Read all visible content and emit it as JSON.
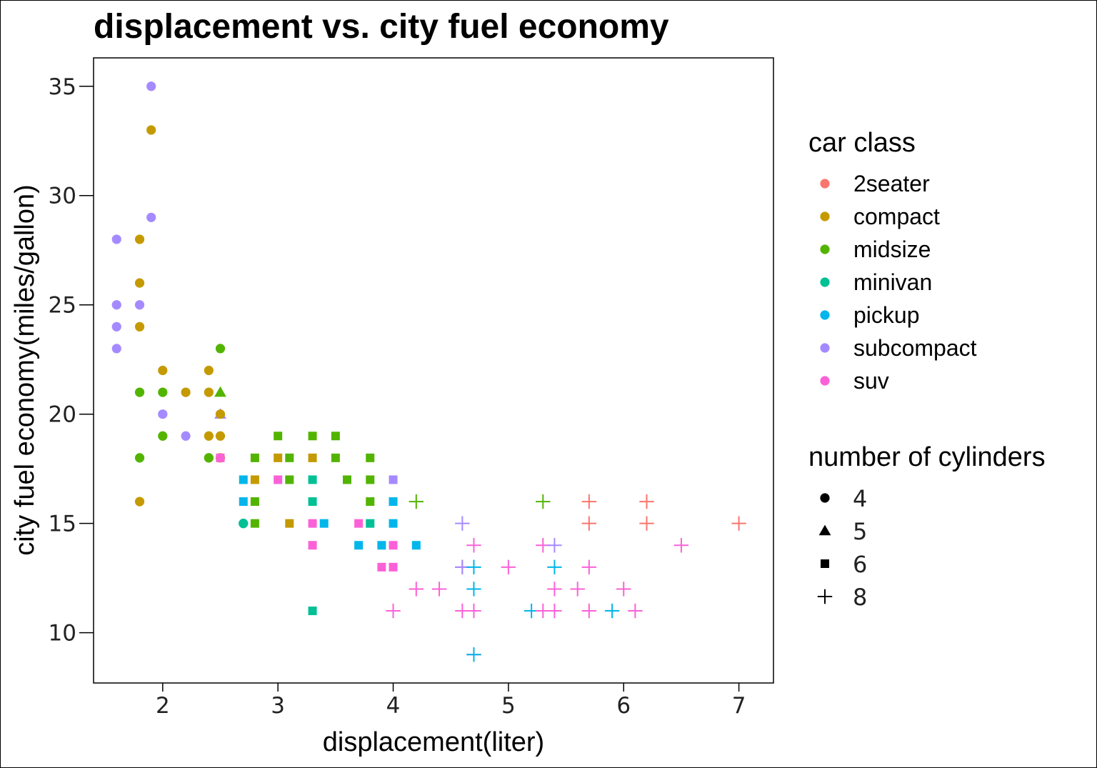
{
  "chart_data": {
    "type": "scatter",
    "title": "displacement vs. city fuel economy",
    "xlabel": "displacement(liter)",
    "ylabel": "city fuel economy(miles/gallon)",
    "xlim": [
      1.4,
      7.3
    ],
    "ylim": [
      7.7,
      36.3
    ],
    "x_ticks": [
      2,
      3,
      4,
      5,
      6,
      7
    ],
    "y_ticks": [
      10,
      15,
      20,
      25,
      30,
      35
    ],
    "grid": false,
    "legend_placement": "right",
    "color_legend": {
      "title": "car class",
      "entries": [
        {
          "label": "2seater",
          "color": "#F8766D"
        },
        {
          "label": "compact",
          "color": "#C49A00"
        },
        {
          "label": "midsize",
          "color": "#53B400"
        },
        {
          "label": "minivan",
          "color": "#00C094"
        },
        {
          "label": "pickup",
          "color": "#00B6EB"
        },
        {
          "label": "subcompact",
          "color": "#A58AFF"
        },
        {
          "label": "suv",
          "color": "#FB61D7"
        }
      ]
    },
    "shape_legend": {
      "title": "number of cylinders",
      "entries": [
        {
          "label": "4",
          "shape": "circle"
        },
        {
          "label": "5",
          "shape": "triangle"
        },
        {
          "label": "6",
          "shape": "square"
        },
        {
          "label": "8",
          "shape": "plus"
        }
      ]
    },
    "points": [
      {
        "x": 1.6,
        "y": 28,
        "class": "subcompact",
        "cyl": 4
      },
      {
        "x": 1.6,
        "y": 25,
        "class": "subcompact",
        "cyl": 4
      },
      {
        "x": 1.6,
        "y": 24,
        "class": "subcompact",
        "cyl": 4
      },
      {
        "x": 1.6,
        "y": 23,
        "class": "subcompact",
        "cyl": 4
      },
      {
        "x": 1.8,
        "y": 28,
        "class": "compact",
        "cyl": 4
      },
      {
        "x": 1.8,
        "y": 26,
        "class": "compact",
        "cyl": 4
      },
      {
        "x": 1.8,
        "y": 24,
        "class": "compact",
        "cyl": 4
      },
      {
        "x": 1.8,
        "y": 16,
        "class": "compact",
        "cyl": 4
      },
      {
        "x": 1.8,
        "y": 25,
        "class": "subcompact",
        "cyl": 4
      },
      {
        "x": 1.8,
        "y": 21,
        "class": "midsize",
        "cyl": 4
      },
      {
        "x": 1.8,
        "y": 18,
        "class": "midsize",
        "cyl": 4
      },
      {
        "x": 1.9,
        "y": 35,
        "class": "subcompact",
        "cyl": 4
      },
      {
        "x": 1.9,
        "y": 33,
        "class": "compact",
        "cyl": 4
      },
      {
        "x": 1.9,
        "y": 29,
        "class": "subcompact",
        "cyl": 4
      },
      {
        "x": 2.0,
        "y": 22,
        "class": "compact",
        "cyl": 4
      },
      {
        "x": 2.0,
        "y": 21,
        "class": "midsize",
        "cyl": 4
      },
      {
        "x": 2.0,
        "y": 20,
        "class": "subcompact",
        "cyl": 4
      },
      {
        "x": 2.0,
        "y": 19,
        "class": "midsize",
        "cyl": 4
      },
      {
        "x": 2.2,
        "y": 21,
        "class": "compact",
        "cyl": 4
      },
      {
        "x": 2.2,
        "y": 19,
        "class": "subcompact",
        "cyl": 4
      },
      {
        "x": 2.4,
        "y": 22,
        "class": "compact",
        "cyl": 4
      },
      {
        "x": 2.4,
        "y": 21,
        "class": "compact",
        "cyl": 4
      },
      {
        "x": 2.4,
        "y": 19,
        "class": "compact",
        "cyl": 4
      },
      {
        "x": 2.4,
        "y": 18,
        "class": "compact",
        "cyl": 4
      },
      {
        "x": 2.4,
        "y": 18,
        "class": "midsize",
        "cyl": 4
      },
      {
        "x": 2.5,
        "y": 23,
        "class": "midsize",
        "cyl": 4
      },
      {
        "x": 2.5,
        "y": 21,
        "class": "midsize",
        "cyl": 5
      },
      {
        "x": 2.5,
        "y": 20,
        "class": "subcompact",
        "cyl": 5
      },
      {
        "x": 2.5,
        "y": 20,
        "class": "compact",
        "cyl": 4
      },
      {
        "x": 2.5,
        "y": 19,
        "class": "compact",
        "cyl": 4
      },
      {
        "x": 2.5,
        "y": 18,
        "class": "compact",
        "cyl": 4
      },
      {
        "x": 2.5,
        "y": 18,
        "class": "suv",
        "cyl": 6
      },
      {
        "x": 2.7,
        "y": 17,
        "class": "pickup",
        "cyl": 6
      },
      {
        "x": 2.7,
        "y": 16,
        "class": "pickup",
        "cyl": 6
      },
      {
        "x": 2.7,
        "y": 15,
        "class": "pickup",
        "cyl": 4
      },
      {
        "x": 2.7,
        "y": 15,
        "class": "minivan",
        "cyl": 4
      },
      {
        "x": 2.8,
        "y": 18,
        "class": "midsize",
        "cyl": 6
      },
      {
        "x": 2.8,
        "y": 17,
        "class": "compact",
        "cyl": 6
      },
      {
        "x": 2.8,
        "y": 16,
        "class": "midsize",
        "cyl": 6
      },
      {
        "x": 2.8,
        "y": 15,
        "class": "midsize",
        "cyl": 6
      },
      {
        "x": 3.0,
        "y": 19,
        "class": "midsize",
        "cyl": 6
      },
      {
        "x": 3.0,
        "y": 18,
        "class": "compact",
        "cyl": 6
      },
      {
        "x": 3.0,
        "y": 17,
        "class": "suv",
        "cyl": 6
      },
      {
        "x": 3.1,
        "y": 18,
        "class": "midsize",
        "cyl": 6
      },
      {
        "x": 3.1,
        "y": 17,
        "class": "midsize",
        "cyl": 6
      },
      {
        "x": 3.1,
        "y": 15,
        "class": "compact",
        "cyl": 6
      },
      {
        "x": 3.3,
        "y": 19,
        "class": "midsize",
        "cyl": 6
      },
      {
        "x": 3.3,
        "y": 18,
        "class": "compact",
        "cyl": 6
      },
      {
        "x": 3.3,
        "y": 17,
        "class": "minivan",
        "cyl": 6
      },
      {
        "x": 3.3,
        "y": 16,
        "class": "minivan",
        "cyl": 6
      },
      {
        "x": 3.3,
        "y": 15,
        "class": "suv",
        "cyl": 6
      },
      {
        "x": 3.3,
        "y": 14,
        "class": "suv",
        "cyl": 6
      },
      {
        "x": 3.3,
        "y": 11,
        "class": "minivan",
        "cyl": 6
      },
      {
        "x": 3.4,
        "y": 15,
        "class": "pickup",
        "cyl": 6
      },
      {
        "x": 3.5,
        "y": 19,
        "class": "midsize",
        "cyl": 6
      },
      {
        "x": 3.5,
        "y": 18,
        "class": "midsize",
        "cyl": 6
      },
      {
        "x": 3.6,
        "y": 17,
        "class": "midsize",
        "cyl": 6
      },
      {
        "x": 3.7,
        "y": 15,
        "class": "suv",
        "cyl": 6
      },
      {
        "x": 3.7,
        "y": 14,
        "class": "pickup",
        "cyl": 6
      },
      {
        "x": 3.8,
        "y": 18,
        "class": "midsize",
        "cyl": 6
      },
      {
        "x": 3.8,
        "y": 17,
        "class": "midsize",
        "cyl": 6
      },
      {
        "x": 3.8,
        "y": 16,
        "class": "midsize",
        "cyl": 6
      },
      {
        "x": 3.8,
        "y": 15,
        "class": "minivan",
        "cyl": 6
      },
      {
        "x": 3.9,
        "y": 14,
        "class": "pickup",
        "cyl": 6
      },
      {
        "x": 3.9,
        "y": 13,
        "class": "suv",
        "cyl": 6
      },
      {
        "x": 4.0,
        "y": 17,
        "class": "subcompact",
        "cyl": 6
      },
      {
        "x": 4.0,
        "y": 16,
        "class": "pickup",
        "cyl": 6
      },
      {
        "x": 4.0,
        "y": 15,
        "class": "pickup",
        "cyl": 6
      },
      {
        "x": 4.0,
        "y": 14,
        "class": "suv",
        "cyl": 6
      },
      {
        "x": 4.0,
        "y": 13,
        "class": "suv",
        "cyl": 6
      },
      {
        "x": 4.0,
        "y": 11,
        "class": "suv",
        "cyl": 8
      },
      {
        "x": 4.2,
        "y": 16,
        "class": "midsize",
        "cyl": 8
      },
      {
        "x": 4.2,
        "y": 14,
        "class": "pickup",
        "cyl": 6
      },
      {
        "x": 4.2,
        "y": 12,
        "class": "suv",
        "cyl": 8
      },
      {
        "x": 4.4,
        "y": 12,
        "class": "suv",
        "cyl": 8
      },
      {
        "x": 4.6,
        "y": 15,
        "class": "subcompact",
        "cyl": 8
      },
      {
        "x": 4.6,
        "y": 13,
        "class": "suv",
        "cyl": 8
      },
      {
        "x": 4.6,
        "y": 13,
        "class": "subcompact",
        "cyl": 8
      },
      {
        "x": 4.6,
        "y": 11,
        "class": "suv",
        "cyl": 8
      },
      {
        "x": 4.7,
        "y": 14,
        "class": "suv",
        "cyl": 8
      },
      {
        "x": 4.7,
        "y": 13,
        "class": "pickup",
        "cyl": 8
      },
      {
        "x": 4.7,
        "y": 12,
        "class": "pickup",
        "cyl": 8
      },
      {
        "x": 4.7,
        "y": 11,
        "class": "suv",
        "cyl": 8
      },
      {
        "x": 4.7,
        "y": 9,
        "class": "suv",
        "cyl": 8
      },
      {
        "x": 4.7,
        "y": 9,
        "class": "pickup",
        "cyl": 8
      },
      {
        "x": 5.0,
        "y": 13,
        "class": "suv",
        "cyl": 8
      },
      {
        "x": 5.2,
        "y": 11,
        "class": "pickup",
        "cyl": 8
      },
      {
        "x": 5.3,
        "y": 16,
        "class": "midsize",
        "cyl": 8
      },
      {
        "x": 5.3,
        "y": 14,
        "class": "suv",
        "cyl": 8
      },
      {
        "x": 5.3,
        "y": 11,
        "class": "suv",
        "cyl": 8
      },
      {
        "x": 5.4,
        "y": 14,
        "class": "subcompact",
        "cyl": 8
      },
      {
        "x": 5.4,
        "y": 13,
        "class": "pickup",
        "cyl": 8
      },
      {
        "x": 5.4,
        "y": 12,
        "class": "suv",
        "cyl": 8
      },
      {
        "x": 5.4,
        "y": 11,
        "class": "suv",
        "cyl": 8
      },
      {
        "x": 5.6,
        "y": 12,
        "class": "suv",
        "cyl": 8
      },
      {
        "x": 5.7,
        "y": 16,
        "class": "2seater",
        "cyl": 8
      },
      {
        "x": 5.7,
        "y": 15,
        "class": "2seater",
        "cyl": 8
      },
      {
        "x": 5.7,
        "y": 13,
        "class": "suv",
        "cyl": 8
      },
      {
        "x": 5.7,
        "y": 11,
        "class": "suv",
        "cyl": 8
      },
      {
        "x": 5.9,
        "y": 11,
        "class": "pickup",
        "cyl": 8
      },
      {
        "x": 6.0,
        "y": 12,
        "class": "suv",
        "cyl": 8
      },
      {
        "x": 6.1,
        "y": 11,
        "class": "suv",
        "cyl": 8
      },
      {
        "x": 6.2,
        "y": 16,
        "class": "2seater",
        "cyl": 8
      },
      {
        "x": 6.2,
        "y": 15,
        "class": "2seater",
        "cyl": 8
      },
      {
        "x": 6.5,
        "y": 14,
        "class": "suv",
        "cyl": 8
      },
      {
        "x": 7.0,
        "y": 15,
        "class": "2seater",
        "cyl": 8
      }
    ]
  }
}
